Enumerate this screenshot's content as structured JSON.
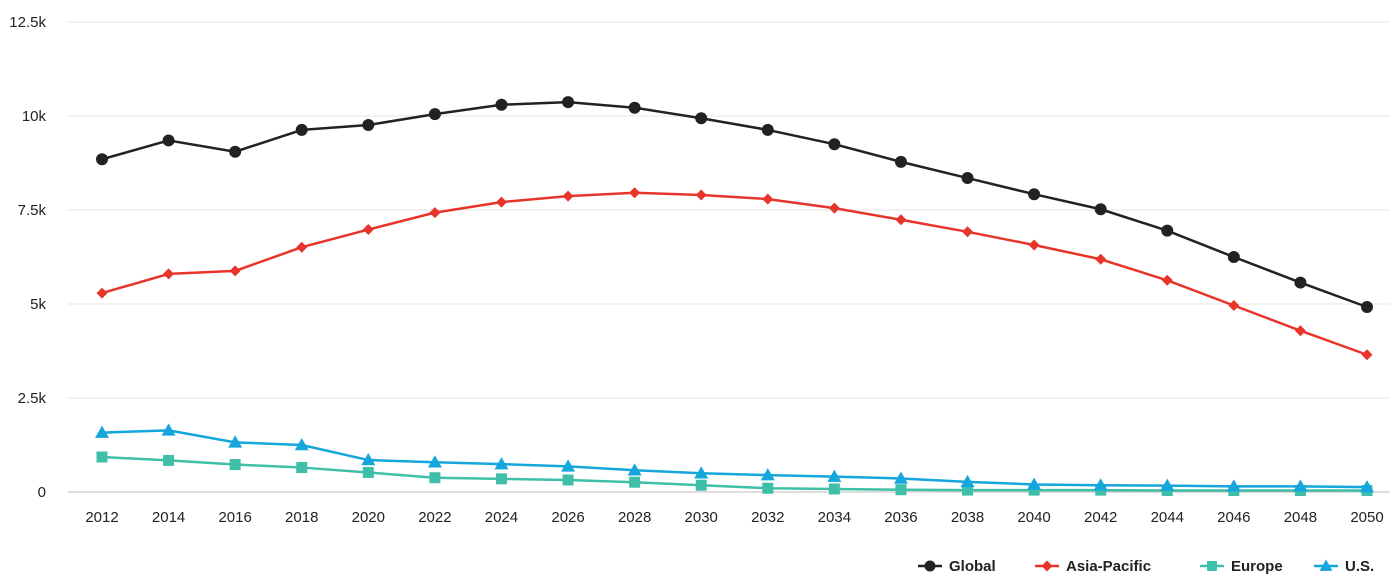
{
  "chart_data": {
    "type": "line",
    "title": "",
    "xlabel": "",
    "ylabel": "",
    "categories": [
      "2012",
      "2014",
      "2016",
      "2018",
      "2020",
      "2022",
      "2024",
      "2026",
      "2028",
      "2030",
      "2032",
      "2034",
      "2036",
      "2038",
      "2040",
      "2042",
      "2044",
      "2046",
      "2048",
      "2050"
    ],
    "ylim": [
      0,
      12500
    ],
    "y_ticks": [
      0,
      2500,
      5000,
      7500,
      10000,
      12500
    ],
    "y_tick_labels": [
      "0",
      "2.5k",
      "5k",
      "7.5k",
      "10k",
      "12.5k"
    ],
    "grid": true,
    "legend_position": "bottom-right",
    "series": [
      {
        "name": "Global",
        "color": "#222222",
        "marker": "circle",
        "values": [
          8850,
          9350,
          9050,
          9630,
          9760,
          10050,
          10300,
          10370,
          10220,
          9940,
          9630,
          9250,
          8780,
          8350,
          7920,
          7520,
          6950,
          6250,
          5570,
          4920
        ]
      },
      {
        "name": "Asia-Pacific",
        "color": "#e8352b",
        "marker": "diamond",
        "values": [
          5290,
          5800,
          5880,
          6510,
          6980,
          7430,
          7710,
          7870,
          7960,
          7900,
          7790,
          7550,
          7240,
          6920,
          6570,
          6190,
          5630,
          4960,
          4290,
          3650
        ]
      },
      {
        "name": "Europe",
        "color": "#3fbfa8",
        "marker": "square",
        "values": [
          930,
          840,
          730,
          650,
          520,
          380,
          350,
          320,
          260,
          180,
          100,
          80,
          60,
          50,
          50,
          50,
          40,
          40,
          40,
          40
        ]
      },
      {
        "name": "U.S.",
        "color": "#15a6dc",
        "marker": "triangle",
        "values": [
          1580,
          1640,
          1320,
          1250,
          850,
          790,
          740,
          680,
          580,
          500,
          450,
          410,
          360,
          270,
          200,
          180,
          170,
          150,
          150,
          130
        ]
      }
    ]
  }
}
